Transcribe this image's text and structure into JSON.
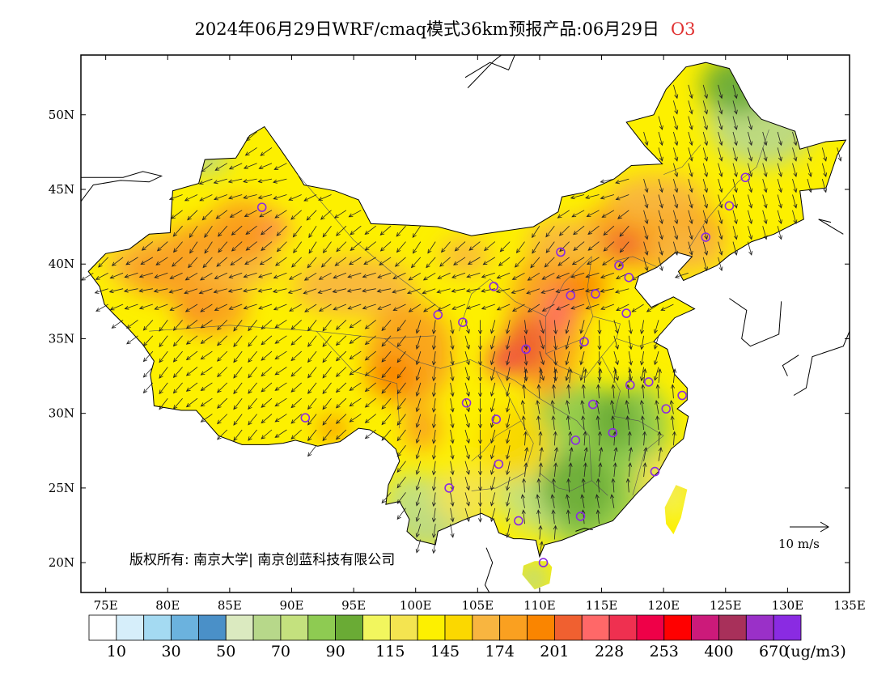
{
  "title": {
    "text": "2024年06月29日WRF/cmaq模式36km预报产品:06月29日",
    "pollutant": "O3"
  },
  "copyright": "版权所有: 南京大学| 南京创蓝科技有限公司",
  "wind_reference": "10 m/s",
  "chart_data": {
    "type": "heatmap",
    "title": "2024年06月29日WRF/cmaq模式36km预报产品:06月29日 O3",
    "subject": "O3",
    "xlim": [
      73,
      135
    ],
    "ylim": [
      18,
      54
    ],
    "x_ticks": [
      {
        "v": 75,
        "label": "75E"
      },
      {
        "v": 80,
        "label": "80E"
      },
      {
        "v": 85,
        "label": "85E"
      },
      {
        "v": 90,
        "label": "90E"
      },
      {
        "v": 95,
        "label": "95E"
      },
      {
        "v": 100,
        "label": "100E"
      },
      {
        "v": 105,
        "label": "105E"
      },
      {
        "v": 110,
        "label": "110E"
      },
      {
        "v": 115,
        "label": "115E"
      },
      {
        "v": 120,
        "label": "120E"
      },
      {
        "v": 125,
        "label": "125E"
      },
      {
        "v": 130,
        "label": "130E"
      },
      {
        "v": 135,
        "label": "135E"
      }
    ],
    "y_ticks": [
      {
        "v": 20,
        "label": "20N"
      },
      {
        "v": 25,
        "label": "25N"
      },
      {
        "v": 30,
        "label": "30N"
      },
      {
        "v": 35,
        "label": "35N"
      },
      {
        "v": 40,
        "label": "40N"
      },
      {
        "v": 45,
        "label": "45N"
      },
      {
        "v": 50,
        "label": "50N"
      }
    ],
    "colorbar": {
      "colors": [
        "#ffffff",
        "#d6eefa",
        "#a4daf2",
        "#6bb2de",
        "#4a90c8",
        "#dbeac0",
        "#b7d88a",
        "#c4e17e",
        "#8ecb52",
        "#6aab35",
        "#f2f65e",
        "#f4e450",
        "#fdf000",
        "#fbd800",
        "#f8b540",
        "#faa020",
        "#fa8500",
        "#f06030",
        "#ff6868",
        "#ef3050",
        "#ef0048",
        "#ff0000",
        "#cc1a7a",
        "#a8305a",
        "#9a30c8",
        "#8a2be2"
      ],
      "labels": [
        "10",
        "30",
        "50",
        "70",
        "90",
        "115",
        "145",
        "174",
        "201",
        "228",
        "253",
        "400",
        "670"
      ],
      "unit": "(ug/m3)"
    },
    "stations": [
      [
        87.6,
        43.8
      ],
      [
        101.8,
        36.6
      ],
      [
        103.8,
        36.1
      ],
      [
        106.3,
        38.5
      ],
      [
        111.7,
        40.8
      ],
      [
        116.4,
        39.9
      ],
      [
        117.2,
        39.1
      ],
      [
        112.5,
        37.9
      ],
      [
        114.5,
        38.0
      ],
      [
        117.0,
        36.7
      ],
      [
        113.6,
        34.8
      ],
      [
        108.9,
        34.3
      ],
      [
        123.4,
        41.8
      ],
      [
        125.3,
        43.9
      ],
      [
        126.6,
        45.8
      ],
      [
        104.1,
        30.7
      ],
      [
        106.5,
        29.6
      ],
      [
        91.1,
        29.7
      ],
      [
        102.7,
        25.0
      ],
      [
        106.7,
        26.6
      ],
      [
        108.3,
        22.8
      ],
      [
        110.3,
        20.0
      ],
      [
        113.3,
        23.1
      ],
      [
        112.9,
        28.2
      ],
      [
        114.3,
        30.6
      ],
      [
        115.9,
        28.7
      ],
      [
        117.3,
        31.9
      ],
      [
        118.8,
        32.1
      ],
      [
        120.2,
        30.3
      ],
      [
        121.5,
        31.2
      ],
      [
        119.3,
        26.1
      ]
    ]
  }
}
